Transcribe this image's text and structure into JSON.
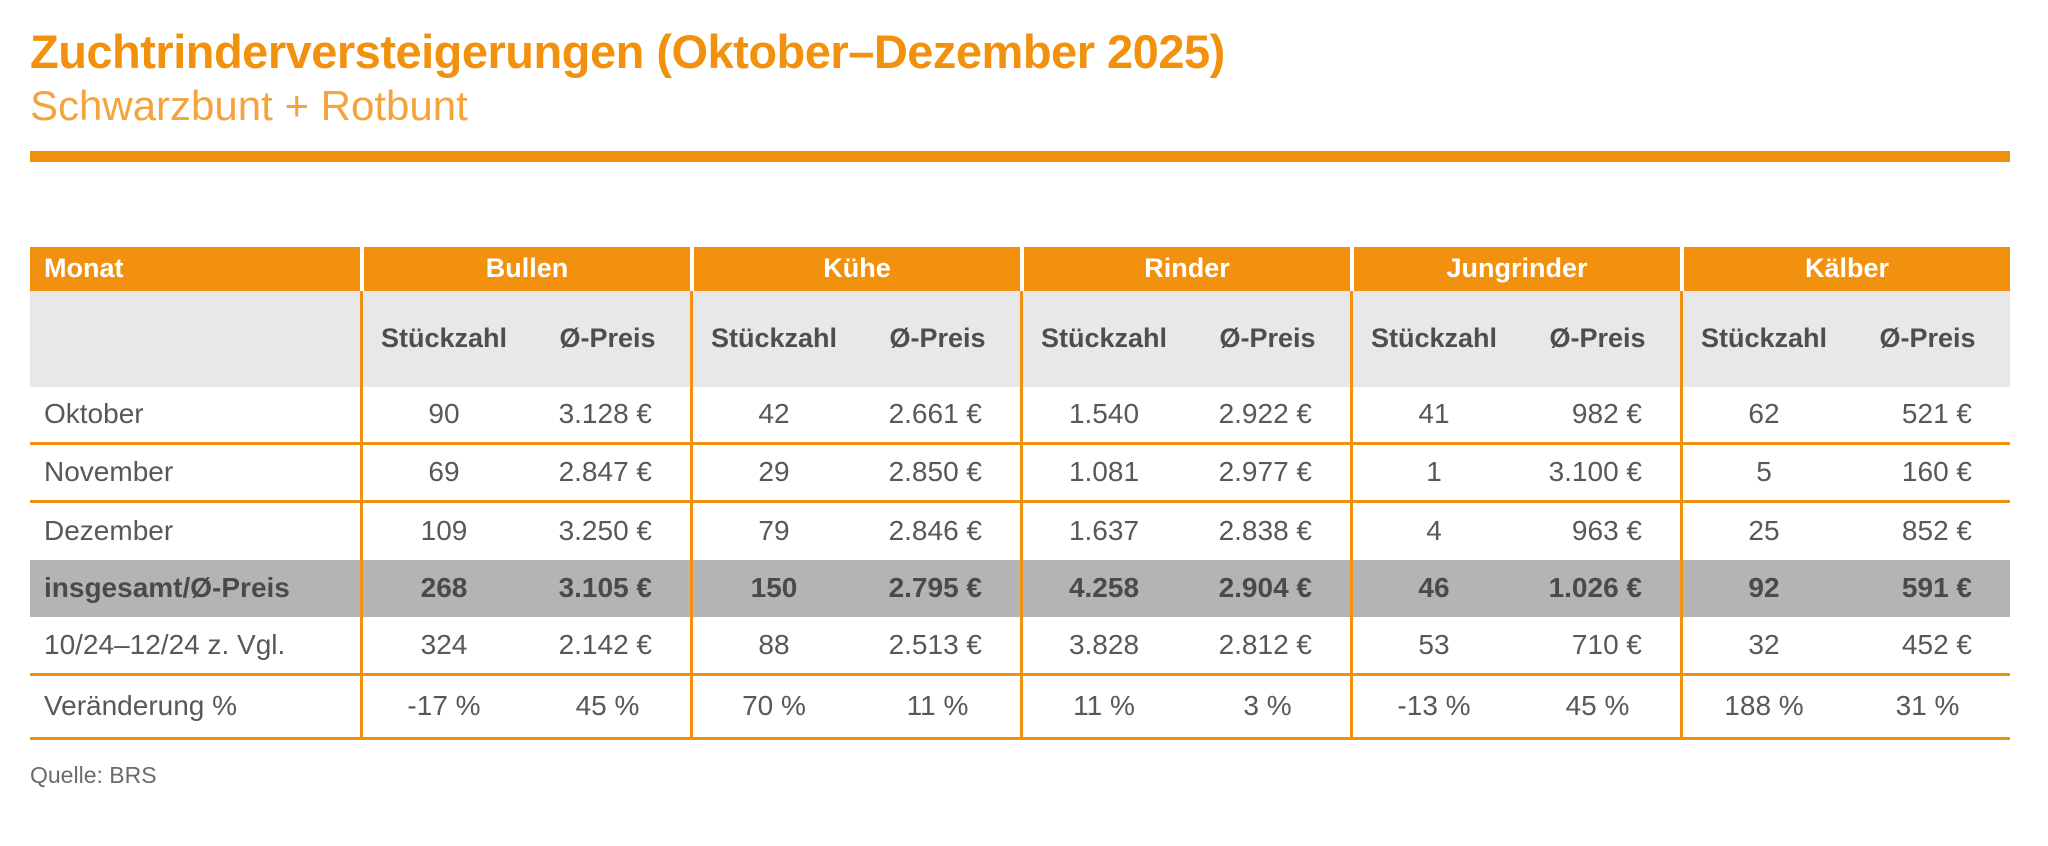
{
  "header": {
    "title": "Zuchtrinderversteigerungen (Oktober–Dezember 2025)",
    "subtitle": "Schwarzbunt + Rotbunt"
  },
  "colors": {
    "accent_orange": "#F1910D",
    "subtitle_orange": "#F4A43C",
    "subheader_bg": "#E9E8E8",
    "total_row_bg": "#B5B4B4",
    "text_gray": "#58585A",
    "header_text": "#FFFFFF"
  },
  "chart_data": {
    "type": "table",
    "title": "Zuchtrinderversteigerungen (Oktober–Dezember 2025)",
    "subtitle": "Schwarzbunt + Rotbunt",
    "row_header": "Monat",
    "column_groups": [
      "Bullen",
      "Kühe",
      "Rinder",
      "Jungrinder",
      "Kälber"
    ],
    "sub_columns": [
      "Stückzahl",
      "Ø-Preis"
    ],
    "rows": [
      {
        "label": "Oktober",
        "type": "data",
        "cells": [
          "90",
          "3.128 €",
          "42",
          "2.661 €",
          "1.540",
          "2.922 €",
          "41",
          "982 €",
          "62",
          "521 €"
        ]
      },
      {
        "label": "November",
        "type": "data",
        "cells": [
          "69",
          "2.847 €",
          "29",
          "2.850 €",
          "1.081",
          "2.977 €",
          "1",
          "3.100 €",
          "5",
          "160 €"
        ]
      },
      {
        "label": "Dezember",
        "type": "data",
        "cells": [
          "109",
          "3.250 €",
          "79",
          "2.846 €",
          "1.637",
          "2.838 €",
          "4",
          "963 €",
          "25",
          "852 €"
        ]
      },
      {
        "label": "insgesamt/Ø-Preis",
        "type": "total",
        "cells": [
          "268",
          "3.105 €",
          "150",
          "2.795 €",
          "4.258",
          "2.904 €",
          "46",
          "1.026 €",
          "92",
          "591 €"
        ]
      },
      {
        "label": "10/24–12/24  z. Vgl.",
        "type": "data",
        "cells": [
          "324",
          "2.142 €",
          "88",
          "2.513 €",
          "3.828",
          "2.812 €",
          "53",
          "710 €",
          "32",
          "452 €"
        ]
      },
      {
        "label": "Veränderung %",
        "type": "data",
        "cells": [
          "-17 %",
          "45 %",
          "70 %",
          "11 %",
          "11 %",
          "3 %",
          "-13 %",
          "45 %",
          "188 %",
          "31 %"
        ]
      }
    ]
  },
  "footer": {
    "source": "Quelle: BRS"
  }
}
